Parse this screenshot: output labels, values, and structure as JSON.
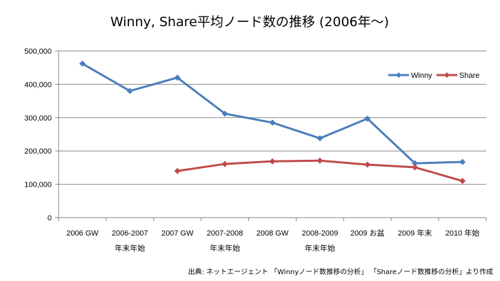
{
  "chart_data": {
    "type": "line",
    "title": "Winny, Share平均ノード数の推移 (2006年～)",
    "categories": [
      [
        "2006 GW",
        ""
      ],
      [
        "2006-2007",
        "年末年始"
      ],
      [
        "2007 GW",
        ""
      ],
      [
        "2007-2008",
        "年末年始"
      ],
      [
        "2008 GW",
        ""
      ],
      [
        "2008-2009",
        "年末年始"
      ],
      [
        "2009 お盆",
        ""
      ],
      [
        "2009 年末",
        ""
      ],
      [
        "2010 年始",
        ""
      ]
    ],
    "series": [
      {
        "name": "Winny",
        "color": "#4a7ebb",
        "values": [
          462000,
          380000,
          420000,
          312000,
          285000,
          238000,
          297000,
          163000,
          167000
        ]
      },
      {
        "name": "Share",
        "color": "#be4b48",
        "values": [
          null,
          null,
          140000,
          161000,
          169000,
          171000,
          159000,
          151000,
          110000
        ]
      }
    ],
    "yticks": [
      "0",
      "100,000",
      "200,000",
      "300,000",
      "400,000",
      "500,000"
    ],
    "ylim": [
      0,
      500000
    ],
    "grid": true,
    "legend": "top-right",
    "source": "出典: ネットエージェント 「Winnyノード数推移の分析」 「Shareノード数推移の分析」より作成"
  }
}
